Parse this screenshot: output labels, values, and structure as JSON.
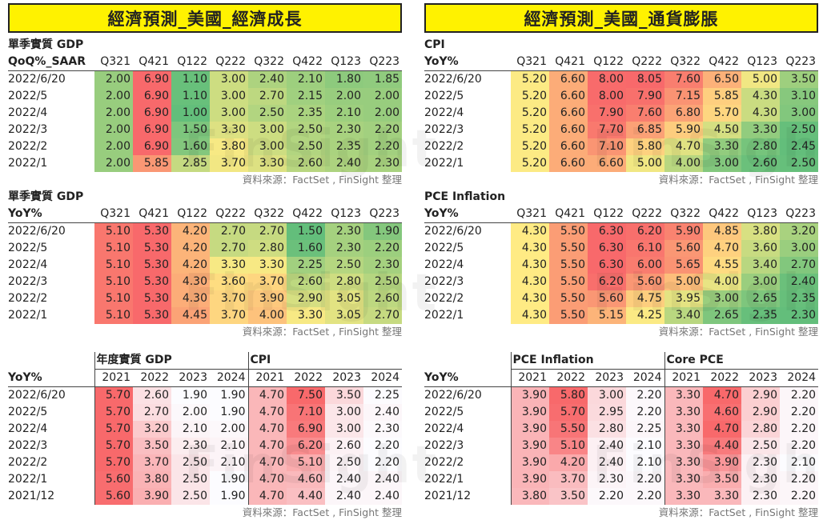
{
  "left_title": "經濟預測_美國_經濟成長",
  "right_title": "經濟預測_美國_通貨膨脹",
  "source": "資料來源：FactSet , FinSight 整理",
  "watermark": "FinSight",
  "quarters": [
    "Q321",
    "Q421",
    "Q122",
    "Q222",
    "Q322",
    "Q422",
    "Q123",
    "Q223"
  ],
  "qrows": [
    "2022/6/20",
    "2022/5",
    "2022/4",
    "2022/3",
    "2022/2",
    "2022/1"
  ],
  "years": [
    "2021",
    "2022",
    "2023",
    "2024"
  ],
  "yrows": [
    "2022/6/20",
    "2022/5",
    "2022/4",
    "2022/3",
    "2022/2",
    "2022/1",
    "2021/12"
  ],
  "colors": {
    "green": "#63be7b",
    "yellow": "#ffeb84",
    "red": "#f8696b",
    "white": "#fcfcff",
    "banner": "#fff200"
  },
  "gdp_qoq": {
    "t1": "單季實質 GDP",
    "t2": "QoQ%_SAAR",
    "values": [
      [
        2.0,
        6.9,
        1.1,
        3.0,
        2.4,
        2.1,
        1.8,
        1.85
      ],
      [
        2.0,
        6.9,
        1.1,
        3.0,
        2.7,
        2.15,
        2.0,
        2.0
      ],
      [
        2.0,
        6.9,
        1.0,
        3.0,
        2.5,
        2.35,
        2.1,
        2.0
      ],
      [
        2.0,
        6.9,
        1.5,
        3.3,
        3.0,
        2.5,
        2.3,
        2.2
      ],
      [
        2.0,
        6.9,
        1.6,
        3.8,
        3.0,
        2.5,
        2.35,
        2.2
      ],
      [
        2.0,
        5.85,
        2.85,
        3.7,
        3.3,
        2.6,
        2.4,
        2.3
      ]
    ]
  },
  "gdp_yoy": {
    "t1": "單季實質 GDP",
    "t2": "YoY%",
    "values": [
      [
        5.1,
        5.3,
        4.2,
        2.7,
        2.7,
        1.5,
        2.3,
        1.9
      ],
      [
        5.1,
        5.3,
        4.2,
        2.7,
        2.8,
        1.6,
        2.3,
        2.2
      ],
      [
        5.1,
        5.3,
        4.2,
        3.3,
        3.3,
        2.25,
        2.5,
        2.3
      ],
      [
        5.1,
        5.3,
        4.3,
        3.6,
        3.7,
        2.6,
        2.8,
        2.5
      ],
      [
        5.1,
        5.3,
        4.3,
        3.7,
        3.9,
        2.9,
        3.05,
        2.6
      ],
      [
        5.1,
        5.3,
        4.45,
        3.7,
        4.0,
        3.3,
        3.05,
        2.7
      ]
    ]
  },
  "cpi_q": {
    "t1": "CPI",
    "t2": "YoY%",
    "values": [
      [
        5.2,
        6.6,
        8.0,
        8.05,
        7.6,
        6.5,
        5.0,
        3.5
      ],
      [
        5.2,
        6.6,
        8.0,
        7.9,
        7.15,
        5.85,
        4.3,
        3.1
      ],
      [
        5.2,
        6.6,
        7.9,
        7.6,
        6.8,
        5.7,
        4.3,
        3.0
      ],
      [
        5.2,
        6.6,
        7.7,
        6.85,
        5.9,
        4.5,
        3.3,
        2.5
      ],
      [
        5.2,
        6.6,
        7.1,
        5.8,
        4.7,
        3.3,
        2.8,
        2.45
      ],
      [
        5.2,
        6.6,
        6.6,
        5.0,
        4.0,
        3.0,
        2.6,
        2.5
      ]
    ]
  },
  "pce_q": {
    "t1": "PCE Inflation",
    "t2": "YoY%",
    "values": [
      [
        4.3,
        5.5,
        6.3,
        6.2,
        5.9,
        4.85,
        3.8,
        3.2
      ],
      [
        4.3,
        5.5,
        6.3,
        6.1,
        5.6,
        4.7,
        3.6,
        3.0
      ],
      [
        4.3,
        5.5,
        6.3,
        6.0,
        5.65,
        4.55,
        3.4,
        2.7
      ],
      [
        4.3,
        5.5,
        6.2,
        5.6,
        5.0,
        4.0,
        3.0,
        2.4
      ],
      [
        4.3,
        5.5,
        5.6,
        4.75,
        3.95,
        3.0,
        2.65,
        2.35
      ],
      [
        4.3,
        5.5,
        5.15,
        4.25,
        3.4,
        2.65,
        2.35,
        2.3
      ]
    ]
  },
  "annual_left": {
    "g1": "年度實質 GDP",
    "g2": "CPI",
    "t2": "YoY%",
    "v1": [
      [
        5.7,
        2.6,
        1.9,
        1.9
      ],
      [
        5.7,
        2.7,
        2.0,
        1.9
      ],
      [
        5.7,
        3.2,
        2.1,
        2.0
      ],
      [
        5.7,
        3.5,
        2.3,
        2.1
      ],
      [
        5.7,
        3.7,
        2.5,
        2.1
      ],
      [
        5.6,
        3.8,
        2.5,
        1.9
      ],
      [
        5.6,
        3.9,
        2.5,
        1.9
      ]
    ],
    "v2": [
      [
        4.7,
        7.5,
        3.5,
        2.25
      ],
      [
        4.7,
        7.1,
        3.0,
        2.4
      ],
      [
        4.7,
        6.9,
        3.0,
        2.3
      ],
      [
        4.7,
        6.2,
        2.6,
        2.2
      ],
      [
        4.7,
        5.1,
        2.5,
        2.2
      ],
      [
        4.7,
        4.6,
        2.4,
        2.4
      ],
      [
        4.7,
        4.4,
        2.4,
        2.4
      ]
    ]
  },
  "annual_right": {
    "g1": "PCE Inflation",
    "g2": "Core PCE",
    "t2": "YoY%",
    "v1": [
      [
        3.9,
        5.8,
        3.0,
        2.2
      ],
      [
        3.9,
        5.7,
        2.95,
        2.2
      ],
      [
        3.9,
        5.5,
        2.8,
        2.25
      ],
      [
        3.9,
        5.1,
        2.4,
        2.1
      ],
      [
        3.9,
        4.2,
        2.4,
        2.1
      ],
      [
        3.9,
        3.7,
        2.3,
        2.2
      ],
      [
        3.8,
        3.5,
        2.2,
        2.2
      ]
    ],
    "v2": [
      [
        3.3,
        4.7,
        2.9,
        2.2
      ],
      [
        3.3,
        4.6,
        2.9,
        2.2
      ],
      [
        3.3,
        4.7,
        2.8,
        2.2
      ],
      [
        3.3,
        4.4,
        2.5,
        2.2
      ],
      [
        3.3,
        3.9,
        2.3,
        2.1
      ],
      [
        3.3,
        3.5,
        2.3,
        2.2
      ],
      [
        3.3,
        3.3,
        2.3,
        2.2
      ]
    ]
  }
}
